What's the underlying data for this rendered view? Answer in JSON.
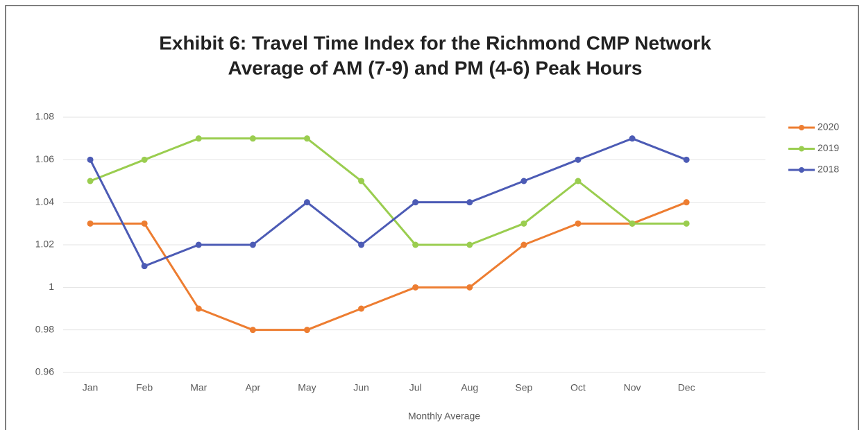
{
  "chart_data": {
    "type": "line",
    "title": "Exhibit 6: Travel Time Index for the Richmond CMP Network",
    "subtitle": "Average of AM (7-9) and PM (4-6) Peak Hours",
    "x_label": "Monthly Average",
    "categories": [
      "Jan",
      "Feb",
      "Mar",
      "Apr",
      "May",
      "Jun",
      "Jul",
      "Aug",
      "Sep",
      "Oct",
      "Nov",
      "Dec"
    ],
    "series": [
      {
        "name": "2020",
        "color": "#ed7d31",
        "values": [
          1.03,
          1.03,
          0.99,
          0.98,
          0.98,
          0.99,
          1.0,
          1.0,
          1.02,
          1.03,
          1.03,
          1.04
        ]
      },
      {
        "name": "2019",
        "color": "#9acd4f",
        "values": [
          1.05,
          1.06,
          1.07,
          1.07,
          1.07,
          1.05,
          1.02,
          1.02,
          1.03,
          1.05,
          1.03,
          1.03
        ]
      },
      {
        "name": "2018",
        "color": "#4c5bb5",
        "values": [
          1.06,
          1.01,
          1.02,
          1.02,
          1.04,
          1.02,
          1.04,
          1.04,
          1.05,
          1.06,
          1.07,
          1.06
        ]
      }
    ],
    "ylim": [
      0.96,
      1.08
    ],
    "yticks": [
      0.96,
      0.98,
      1,
      1.02,
      1.04,
      1.06,
      1.08
    ],
    "grid": true,
    "legend": "right"
  }
}
